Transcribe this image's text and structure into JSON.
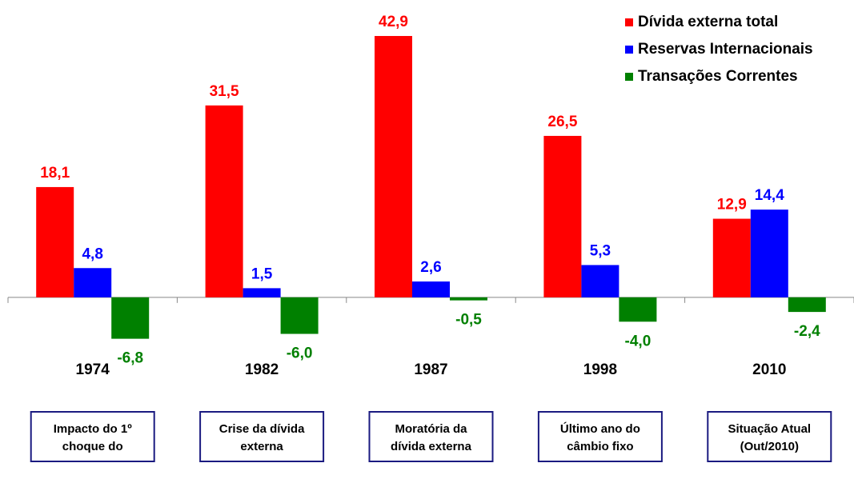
{
  "chart_data": {
    "type": "bar",
    "categories": [
      "1974",
      "1982",
      "1987",
      "1998",
      "2010"
    ],
    "series": [
      {
        "name": "Dívida externa total",
        "color": "#ff0000",
        "values": [
          18.1,
          31.5,
          42.9,
          26.5,
          12.9
        ],
        "value_labels": [
          "18,1",
          "31,5",
          "42,9",
          "26,5",
          "12,9"
        ]
      },
      {
        "name": "Reservas Internacionais",
        "color": "#0000ff",
        "values": [
          4.8,
          1.5,
          2.6,
          5.3,
          14.4
        ],
        "value_labels": [
          "4,8",
          "1,5",
          "2,6",
          "5,3",
          "14,4"
        ]
      },
      {
        "name": "Transações Correntes",
        "color": "#008000",
        "values": [
          -6.8,
          -6.0,
          -0.5,
          -4.0,
          -2.4
        ],
        "value_labels": [
          "-6,8",
          "-6,0",
          "-0,5",
          "-4,0",
          "-2,4"
        ]
      }
    ],
    "boxes": [
      [
        "Impacto do 1º",
        "choque do"
      ],
      [
        "Crise da dívida",
        "externa"
      ],
      [
        "Moratória da",
        "dívida externa"
      ],
      [
        "Último ano do",
        "câmbio fixo"
      ],
      [
        "Situação Atual",
        "(Out/2010)"
      ]
    ],
    "ylim": [
      -10,
      45
    ],
    "legend": "top-right"
  }
}
